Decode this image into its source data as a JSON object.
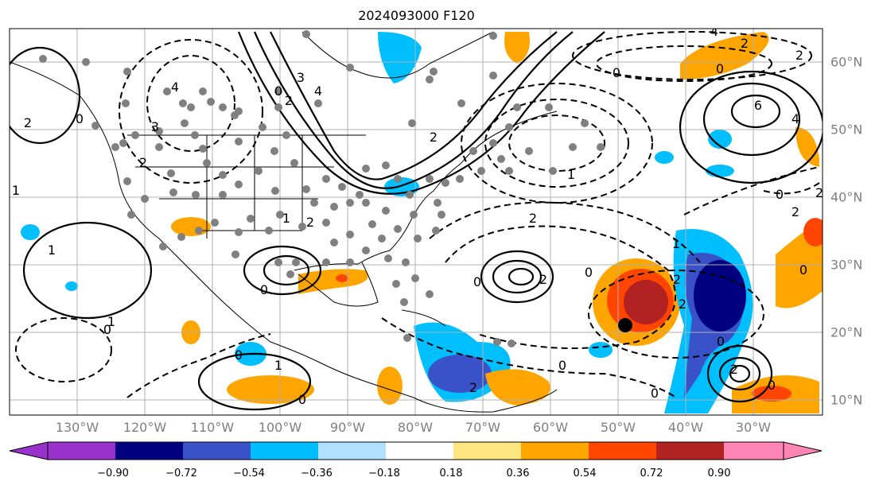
{
  "title": "2024093000 F120",
  "lon_labels": [
    "130°W",
    "120°W",
    "110°W",
    "100°W",
    "90°W",
    "80°W",
    "70°W",
    "60°W",
    "50°W",
    "40°W",
    "30°W"
  ],
  "lat_labels": [
    "60°N",
    "50°N",
    "40°N",
    "30°N",
    "20°N",
    "10°N"
  ],
  "colorbar": {
    "ticks": [
      "−0.90",
      "−0.72",
      "−0.54",
      "−0.36",
      "−0.18",
      "0.18",
      "0.36",
      "0.54",
      "0.72",
      "0.90"
    ],
    "colors": [
      "#9932cc",
      "#000080",
      "#3a52c8",
      "#00bfff",
      "#b0e0ff",
      "#ffffff",
      "#ffe680",
      "#ffa500",
      "#ff4500",
      "#b22222",
      "#ff85b4"
    ]
  },
  "contour_labels": [
    "2",
    "0",
    "4",
    "3",
    "2",
    "1",
    "0",
    "2",
    "3",
    "2",
    "1",
    "0",
    "2",
    "2",
    "0",
    "0",
    "1",
    "2",
    "2",
    "0",
    "1",
    "1",
    "0",
    "0",
    "0",
    "4",
    "2",
    "0",
    "2",
    "2",
    "0",
    "1",
    "0",
    "2",
    "0",
    "6",
    "4",
    "2",
    "0",
    "2",
    "1",
    "0",
    "0",
    "2",
    "4"
  ],
  "station_dots": 120,
  "storm_marker_color": "#000000"
}
